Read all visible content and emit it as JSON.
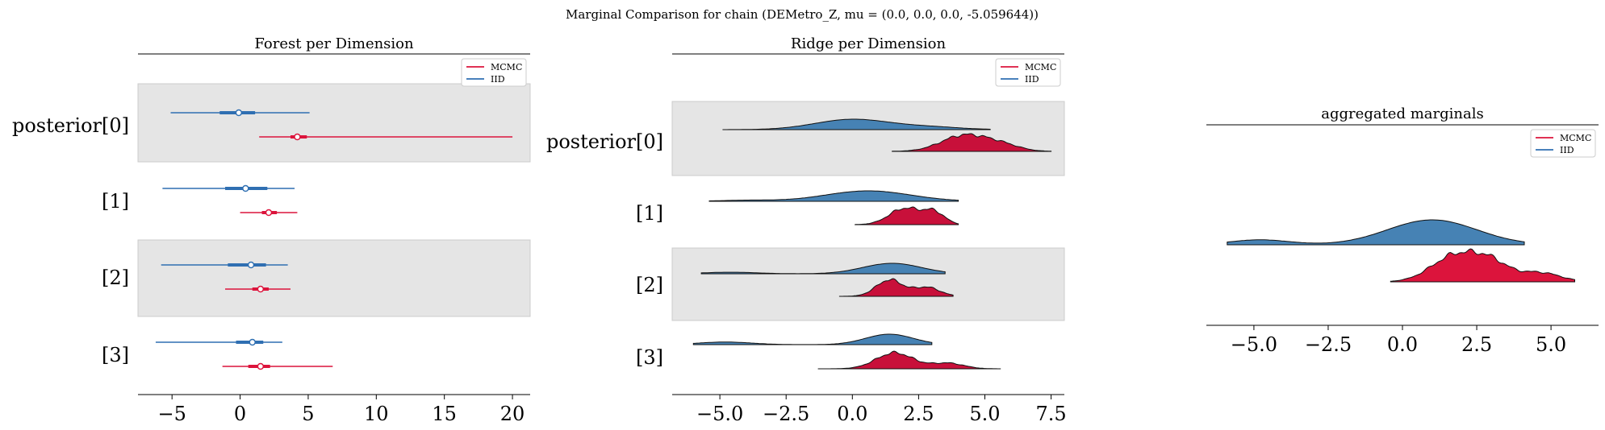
{
  "figure": {
    "suptitle": "Marginal Comparison for chain (DEMetro_Z, mu = (0.0, 0.0, 0.0, -5.059644))"
  },
  "colors": {
    "mcmc": "#dc143c",
    "mcmc_ridge_dark": "#c0103a",
    "iid": "#2f6fb2",
    "iid_ridge": "#4682b4",
    "band": "#e5e5e5"
  },
  "legend": {
    "mcmc": "MCMC",
    "iid": "IID"
  },
  "chart_data": [
    {
      "type": "forest",
      "title": "Forest per Dimension",
      "xlim": [
        -7.5,
        21.3
      ],
      "xticks": [
        "−5",
        "0",
        "5",
        "10",
        "15",
        "20"
      ],
      "xtick_values": [
        -5,
        0,
        5,
        10,
        15,
        20
      ],
      "ylabels": [
        "posterior[0]",
        "[1]",
        "[2]",
        "[3]"
      ],
      "series": [
        {
          "name": "IID",
          "dims": [
            {
              "lo": -5.1,
              "q1": -1.5,
              "median": -0.1,
              "q3": 1.1,
              "hi": 5.1
            },
            {
              "lo": -5.7,
              "q1": -1.1,
              "median": 0.4,
              "q3": 2.0,
              "hi": 4.0
            },
            {
              "lo": -5.8,
              "q1": -0.9,
              "median": 0.8,
              "q3": 1.9,
              "hi": 3.5
            },
            {
              "lo": -6.2,
              "q1": -0.3,
              "median": 0.9,
              "q3": 1.7,
              "hi": 3.1
            }
          ]
        },
        {
          "name": "MCMC",
          "dims": [
            {
              "lo": 1.4,
              "q1": 3.7,
              "median": 4.2,
              "q3": 4.9,
              "hi": 20.0
            },
            {
              "lo": 0.0,
              "q1": 1.6,
              "median": 2.1,
              "q3": 2.7,
              "hi": 4.2
            },
            {
              "lo": -1.1,
              "q1": 0.9,
              "median": 1.5,
              "q3": 2.1,
              "hi": 3.7
            },
            {
              "lo": -1.3,
              "q1": 0.6,
              "median": 1.5,
              "q3": 2.2,
              "hi": 6.8
            }
          ]
        }
      ]
    },
    {
      "type": "ridge",
      "title": "Ridge per Dimension",
      "xlim": [
        -6.8,
        8.0
      ],
      "xticks": [
        "−5.0",
        "−2.5",
        "0.0",
        "2.5",
        "5.0",
        "7.5"
      ],
      "xtick_values": [
        -5.0,
        -2.5,
        0.0,
        2.5,
        5.0,
        7.5
      ],
      "ylabels": [
        "posterior[0]",
        "[1]",
        "[2]",
        "[3]"
      ],
      "series": [
        {
          "name": "IID",
          "dims": [
            {
              "range": [
                -4.9,
                5.2
              ],
              "peaks": [
                [
                  0.0,
                  1.0,
                  1.4
                ],
                [
                  2.9,
                  0.25,
                  1.2
                ]
              ]
            },
            {
              "range": [
                -5.4,
                4.0
              ],
              "peaks": [
                [
                  -4.0,
                  0.1,
                  1.0
                ],
                [
                  0.6,
                  1.0,
                  1.6
                ]
              ]
            },
            {
              "range": [
                -5.7,
                3.5
              ],
              "peaks": [
                [
                  -4.6,
                  0.15,
                  1.0
                ],
                [
                  1.5,
                  1.0,
                  1.1
                ]
              ]
            },
            {
              "range": [
                -6.0,
                3.0
              ],
              "peaks": [
                [
                  -4.8,
                  0.25,
                  1.0
                ],
                [
                  1.4,
                  1.0,
                  0.9
                ]
              ]
            }
          ]
        },
        {
          "name": "MCMC",
          "dims": [
            {
              "range": [
                1.5,
                7.5
              ],
              "peaks": [
                [
                  4.2,
                  1.0,
                  0.85
                ],
                [
                  5.6,
                  0.4,
                  0.7
                ]
              ]
            },
            {
              "range": [
                0.1,
                4.0
              ],
              "peaks": [
                [
                  2.0,
                  1.0,
                  0.6
                ],
                [
                  3.1,
                  0.7,
                  0.4
                ]
              ]
            },
            {
              "range": [
                -0.5,
                3.8
              ],
              "peaks": [
                [
                  1.4,
                  1.0,
                  0.5
                ],
                [
                  2.8,
                  0.55,
                  0.5
                ]
              ]
            },
            {
              "range": [
                -1.3,
                5.6
              ],
              "peaks": [
                [
                  1.6,
                  1.0,
                  0.7
                ],
                [
                  3.6,
                  0.35,
                  0.6
                ]
              ]
            }
          ]
        }
      ]
    },
    {
      "type": "ridge",
      "title": "aggregated marginals",
      "xlim": [
        -6.6,
        6.6
      ],
      "xticks": [
        "−5.0",
        "−2.5",
        "0.0",
        "2.5",
        "5.0"
      ],
      "xtick_values": [
        -5.0,
        -2.5,
        0.0,
        2.5,
        5.0
      ],
      "ylabels": [],
      "series": [
        {
          "name": "IID",
          "dims": [
            {
              "range": [
                -5.9,
                4.1
              ],
              "peaks": [
                [
                  -4.8,
                  0.2,
                  1.0
                ],
                [
                  1.0,
                  1.0,
                  1.5
                ]
              ]
            }
          ]
        },
        {
          "name": "MCMC",
          "dims": [
            {
              "range": [
                -0.4,
                5.8
              ],
              "peaks": [
                [
                  1.8,
                  1.0,
                  0.8
                ],
                [
                  3.0,
                  0.6,
                  0.6
                ],
                [
                  4.6,
                  0.35,
                  0.7
                ]
              ]
            }
          ]
        }
      ]
    }
  ]
}
